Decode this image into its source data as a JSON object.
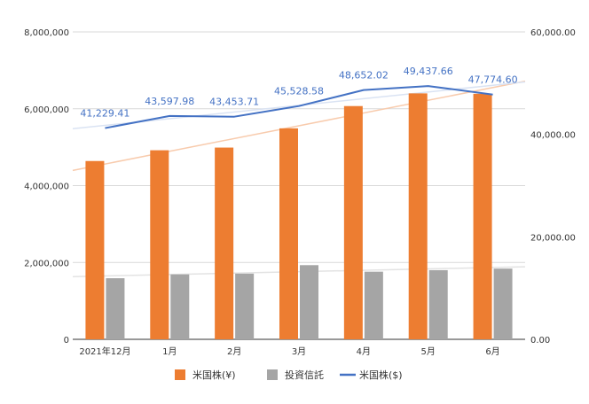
{
  "chart_data": {
    "type": "bar",
    "categories": [
      "2021年12月",
      "1月",
      "2月",
      "3月",
      "4月",
      "5月",
      "6月"
    ],
    "series": [
      {
        "name": "米国株(¥)",
        "kind": "bar",
        "axis": "left",
        "color": "#ED7D31",
        "values": [
          4640000,
          4920000,
          4990000,
          5490000,
          6070000,
          6400000,
          6390000
        ]
      },
      {
        "name": "投資信託",
        "kind": "bar",
        "axis": "left",
        "color": "#A5A5A5",
        "values": [
          1590000,
          1690000,
          1710000,
          1930000,
          1760000,
          1800000,
          1840000
        ]
      },
      {
        "name": "米国株($)",
        "kind": "line",
        "axis": "right",
        "color": "#4472C4",
        "values": [
          41229.41,
          43597.98,
          43453.71,
          45528.58,
          48652.02,
          49437.66,
          47774.6
        ],
        "labels": [
          "41,229.41",
          "43,597.98",
          "43,453.71",
          "45,528.58",
          "48,652.02",
          "49,437.66",
          "47,774.60"
        ]
      }
    ],
    "trendlines": [
      {
        "series": "米国株(¥)",
        "color": "#F8CBAD"
      },
      {
        "series": "投資信託",
        "color": "#E3E3E3"
      },
      {
        "series": "米国株($)",
        "color": "#DAE3F3"
      }
    ],
    "left_axis": {
      "ylim": [
        0,
        8000000
      ],
      "ticks": [
        0,
        2000000,
        4000000,
        6000000,
        8000000
      ],
      "tick_labels": [
        "0",
        "2,000,000",
        "4,000,000",
        "6,000,000",
        "8,000,000"
      ]
    },
    "right_axis": {
      "ylim": [
        0,
        60000
      ],
      "ticks": [
        0,
        20000,
        40000,
        60000
      ],
      "tick_labels": [
        "0.00",
        "20,000.00",
        "40,000.00",
        "60,000.00"
      ]
    },
    "grid": true,
    "legend_position": "bottom",
    "legend": [
      {
        "label": "米国株(¥)",
        "color": "#ED7D31",
        "marker": "square"
      },
      {
        "label": "投資信託",
        "color": "#A5A5A5",
        "marker": "square"
      },
      {
        "label": "米国株($)",
        "color": "#4472C4",
        "marker": "line"
      }
    ]
  }
}
